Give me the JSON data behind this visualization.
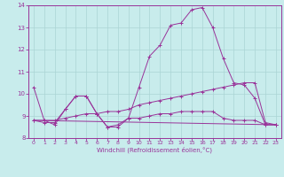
{
  "xlabel": "Windchill (Refroidissement éolien,°C)",
  "bg_color": "#c8ecec",
  "grid_color": "#aad4d4",
  "line_color": "#993399",
  "xlim": [
    -0.5,
    23.5
  ],
  "ylim": [
    8,
    14
  ],
  "xticks": [
    0,
    1,
    2,
    3,
    4,
    5,
    6,
    7,
    8,
    9,
    10,
    11,
    12,
    13,
    14,
    15,
    16,
    17,
    18,
    19,
    20,
    21,
    22,
    23
  ],
  "yticks": [
    8,
    9,
    10,
    11,
    12,
    13,
    14
  ],
  "series": [
    {
      "x": [
        0,
        1,
        2,
        3,
        4,
        5,
        6,
        7,
        8,
        9,
        10,
        11,
        12,
        13,
        14,
        15,
        16,
        17,
        18,
        19,
        20,
        21,
        22,
        23
      ],
      "y": [
        10.3,
        8.8,
        8.6,
        9.3,
        9.9,
        9.9,
        9.1,
        8.5,
        8.5,
        8.9,
        10.3,
        11.7,
        12.2,
        13.1,
        13.2,
        13.8,
        13.9,
        13.0,
        11.6,
        10.5,
        10.4,
        9.8,
        8.6,
        8.6
      ]
    },
    {
      "x": [
        0,
        1,
        2,
        3,
        4,
        5,
        6,
        7,
        8,
        9,
        10,
        11,
        12,
        13,
        14,
        15,
        16,
        17,
        18,
        19,
        20,
        21,
        22,
        23
      ],
      "y": [
        8.8,
        8.8,
        8.8,
        8.9,
        9.0,
        9.1,
        9.1,
        9.2,
        9.2,
        9.3,
        9.5,
        9.6,
        9.7,
        9.8,
        9.9,
        10.0,
        10.1,
        10.2,
        10.3,
        10.4,
        10.5,
        10.5,
        8.7,
        8.6
      ]
    },
    {
      "x": [
        0,
        1,
        2,
        3,
        4,
        5,
        6,
        7,
        8,
        9,
        10,
        11,
        12,
        13,
        14,
        15,
        16,
        17,
        18,
        19,
        20,
        21,
        22,
        23
      ],
      "y": [
        8.8,
        8.7,
        8.7,
        9.3,
        9.9,
        9.9,
        9.1,
        8.5,
        8.6,
        8.9,
        8.9,
        9.0,
        9.1,
        9.1,
        9.2,
        9.2,
        9.2,
        9.2,
        8.9,
        8.8,
        8.8,
        8.8,
        8.6,
        8.6
      ]
    },
    {
      "x": [
        0,
        23
      ],
      "y": [
        8.8,
        8.6
      ],
      "no_marker": true
    }
  ]
}
